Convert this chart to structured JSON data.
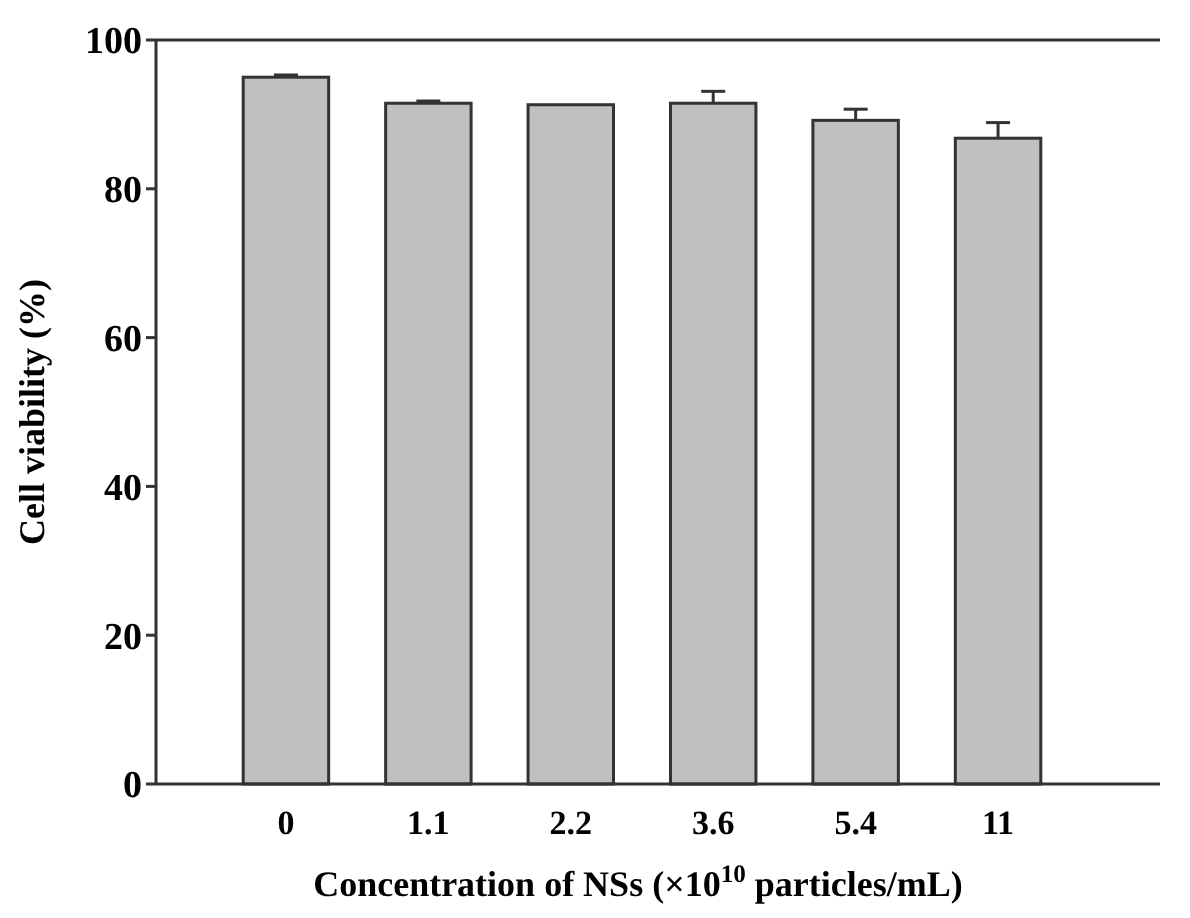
{
  "chart_data": {
    "type": "bar",
    "xlabel": "Concentration of NSs (×10$^{10}$ particles/mL)",
    "ylabel": "Cell viability (%)",
    "categories": [
      "0",
      "1.1",
      "2.2",
      "3.6",
      "5.4",
      "11"
    ],
    "values": [
      95,
      91.5,
      91.3,
      91.5,
      89.2,
      86.8
    ],
    "errors": [
      0.3,
      0.3,
      null,
      1.6,
      1.5,
      2.1
    ],
    "color": "#c0c0c0",
    "ylim": [
      0,
      100
    ],
    "yticks": [
      0,
      20,
      40,
      60,
      80,
      100
    ],
    "grid": false
  }
}
